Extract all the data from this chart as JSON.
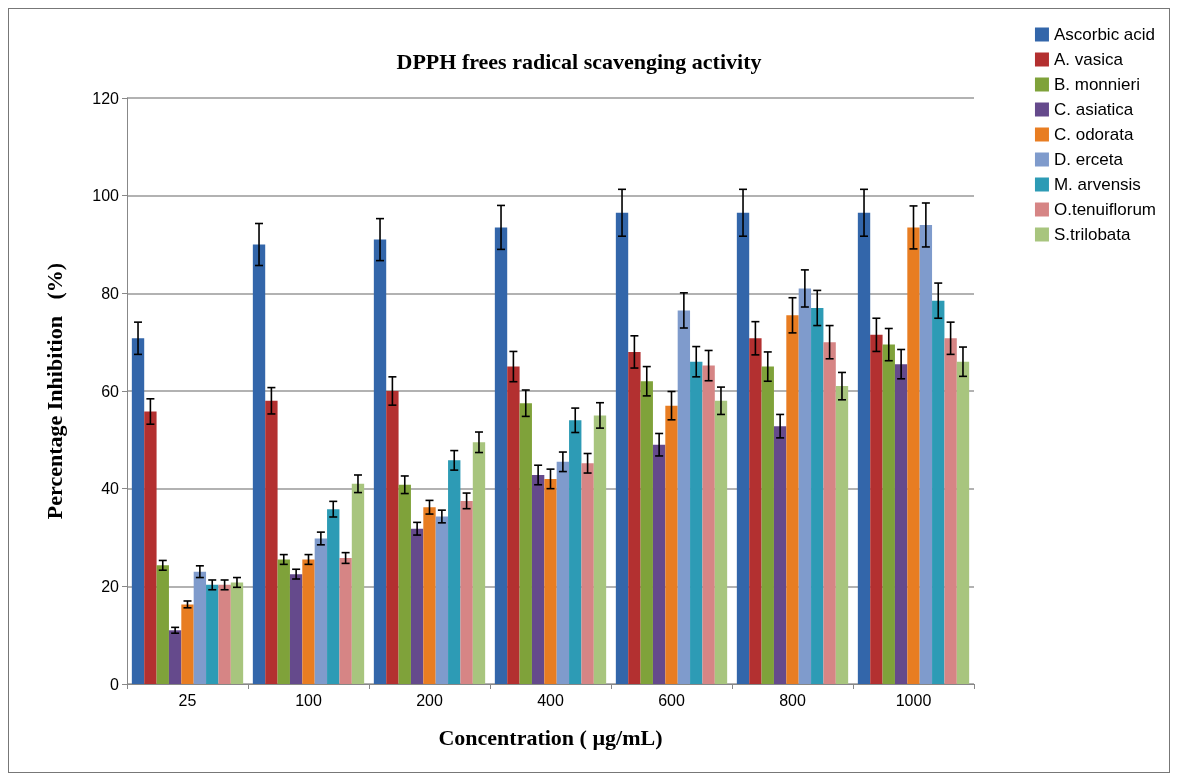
{
  "chart_data": {
    "type": "bar",
    "title": "DPPH frees radical scavenging activity",
    "xlabel": "Concentration ( µg/mL)",
    "ylabel": "Percentage Inhibition   (%)",
    "categories": [
      "25",
      "100",
      "200",
      "400",
      "600",
      "800",
      "1000"
    ],
    "ylim": [
      0,
      120
    ],
    "yticks": [
      0,
      20,
      40,
      60,
      80,
      100,
      120
    ],
    "grid": "y",
    "legend": "top right",
    "series": [
      {
        "name": "Ascorbic acid",
        "color": "#3366aa",
        "values": [
          70.8,
          90,
          91,
          93.5,
          96.5,
          96.5,
          96.5
        ],
        "errors": [
          3.3,
          4.3,
          4.3,
          4.5,
          4.8,
          4.8,
          4.8
        ]
      },
      {
        "name": "A. vasica",
        "color": "#b33030",
        "values": [
          55.8,
          58,
          60,
          65,
          68,
          70.8,
          71.5
        ],
        "errors": [
          2.6,
          2.7,
          2.9,
          3.1,
          3.3,
          3.4,
          3.4
        ]
      },
      {
        "name": "B. monnieri",
        "color": "#7fa23a",
        "values": [
          24.3,
          25.5,
          40.8,
          57.5,
          62,
          65,
          69.5
        ],
        "errors": [
          1,
          1,
          1.8,
          2.7,
          3,
          3,
          3.3
        ]
      },
      {
        "name": "C. asiatica",
        "color": "#654a8c",
        "values": [
          11,
          22.5,
          31.8,
          42.8,
          49,
          52.8,
          65.5
        ],
        "errors": [
          0.6,
          1,
          1.3,
          2,
          2.3,
          2.4,
          3
        ]
      },
      {
        "name": "C. odorata",
        "color": "#e87d22",
        "values": [
          16.3,
          25.5,
          36.2,
          42,
          57,
          75.5,
          93.5
        ],
        "errors": [
          0.7,
          1,
          1.4,
          2,
          2.9,
          3.6,
          4.4
        ]
      },
      {
        "name": "D. erceta",
        "color": "#7f9bcc",
        "values": [
          23,
          29.8,
          34.3,
          45.5,
          76.5,
          81,
          94
        ],
        "errors": [
          1.2,
          1.3,
          1.3,
          2,
          3.6,
          3.8,
          4.5
        ]
      },
      {
        "name": "M. arvensis",
        "color": "#2d9bb5",
        "values": [
          20.3,
          35.8,
          45.8,
          54,
          66,
          77,
          78.5
        ],
        "errors": [
          1,
          1.6,
          2,
          2.5,
          3.1,
          3.6,
          3.6
        ]
      },
      {
        "name": "O.tenuiflorum",
        "color": "#d68585",
        "values": [
          20.3,
          25.8,
          37.5,
          45.2,
          65.2,
          70,
          70.8
        ],
        "errors": [
          1,
          1.1,
          1.6,
          2,
          3.1,
          3.4,
          3.3
        ]
      },
      {
        "name": "S.trilobata",
        "color": "#a8c57e",
        "values": [
          20.8,
          41,
          49.5,
          55,
          58,
          61,
          66
        ],
        "errors": [
          1,
          1.8,
          2.1,
          2.6,
          2.8,
          2.8,
          3
        ]
      }
    ]
  }
}
